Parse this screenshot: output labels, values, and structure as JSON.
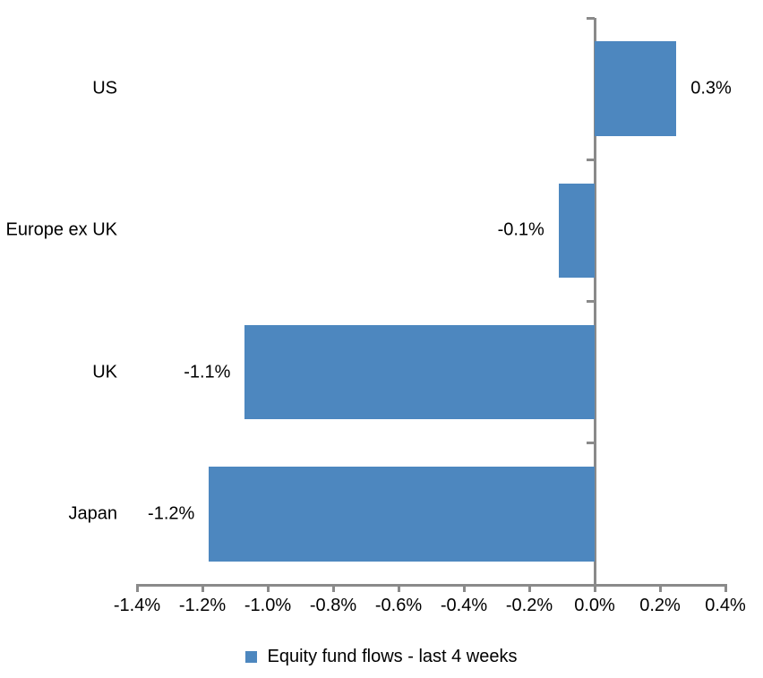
{
  "chart_data": {
    "type": "bar",
    "orientation": "horizontal",
    "title": "",
    "categories": [
      "US",
      "Europe ex UK",
      "UK",
      "Japan"
    ],
    "series": [
      {
        "name": "Equity fund flows - last 4 weeks",
        "values": [
          0.25,
          -0.11,
          -1.07,
          -1.18
        ],
        "data_labels": [
          "0.3%",
          "-0.1%",
          "-1.1%",
          "-1.2%"
        ],
        "color": "#4D87BF"
      }
    ],
    "xlim": [
      -1.4,
      0.4
    ],
    "x_ticks": [
      -1.4,
      -1.2,
      -1.0,
      -0.8,
      -0.6,
      -0.4,
      -0.2,
      0.0,
      0.2,
      0.4
    ],
    "x_tick_labels": [
      "-1.4%",
      "-1.2%",
      "-1.0%",
      "-0.8%",
      "-0.6%",
      "-0.4%",
      "-0.2%",
      "0.0%",
      "0.2%",
      "0.4%"
    ],
    "grid": false,
    "legend": {
      "position": "bottom",
      "entries": [
        "Equity fund flows - last 4 weeks"
      ],
      "marker_color": "#4D87BF"
    },
    "axis_color": "#8A8A8A",
    "text_color": "#000000",
    "background": "#FFFFFF"
  }
}
